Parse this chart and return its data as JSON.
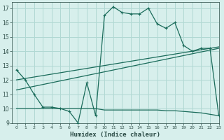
{
  "xlabel": "Humidex (Indice chaleur)",
  "bg_color": "#d7efec",
  "grid_color": "#b0d8d3",
  "line_color": "#1a6b5a",
  "xlim": [
    -0.5,
    23
  ],
  "ylim": [
    9,
    17.4
  ],
  "yticks": [
    9,
    10,
    11,
    12,
    13,
    14,
    15,
    16,
    17
  ],
  "xticks": [
    0,
    1,
    2,
    3,
    4,
    5,
    6,
    7,
    8,
    9,
    10,
    11,
    12,
    13,
    14,
    15,
    16,
    17,
    18,
    19,
    20,
    21,
    22,
    23
  ],
  "curve1_x": [
    0,
    1,
    2,
    3,
    4,
    5,
    6,
    7,
    8,
    9,
    10,
    11,
    12,
    13,
    14,
    15,
    16,
    17,
    18,
    19,
    20,
    21,
    22,
    23
  ],
  "curve1_y": [
    12.7,
    12.0,
    11.0,
    10.1,
    10.1,
    10.0,
    9.8,
    9.0,
    11.8,
    9.5,
    16.5,
    17.1,
    16.7,
    16.6,
    16.6,
    17.0,
    15.9,
    15.6,
    16.0,
    14.4,
    14.0,
    14.2,
    14.2,
    9.5
  ],
  "curve2_x": [
    0,
    23
  ],
  "curve2_y": [
    11.3,
    14.2
  ],
  "curve3_x": [
    0,
    23
  ],
  "curve3_y": [
    12.0,
    14.3
  ],
  "curve4_x": [
    0,
    9,
    10,
    11,
    12,
    13,
    14,
    15,
    16,
    17,
    18,
    19,
    20,
    21,
    22,
    23
  ],
  "curve4_y": [
    10.0,
    10.0,
    9.9,
    9.9,
    9.9,
    9.9,
    9.9,
    9.9,
    9.9,
    9.85,
    9.85,
    9.8,
    9.75,
    9.7,
    9.6,
    9.5
  ]
}
